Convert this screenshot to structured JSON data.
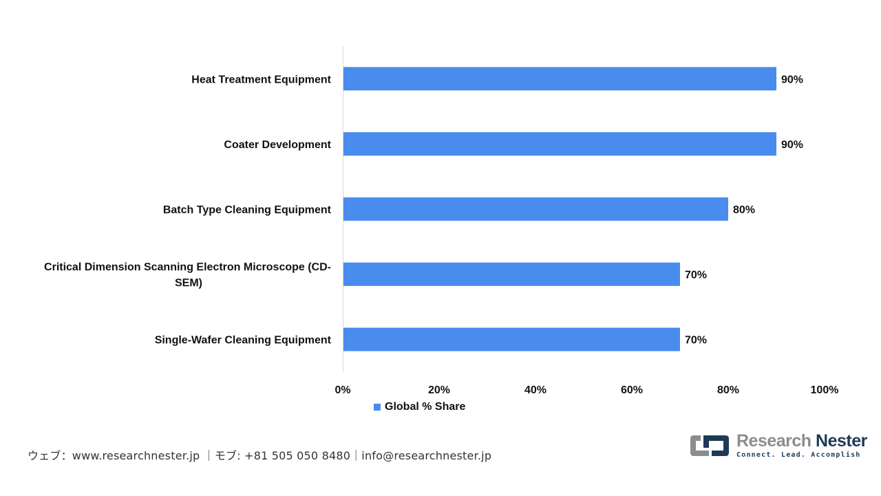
{
  "chart_data": {
    "type": "bar",
    "orientation": "horizontal",
    "categories": [
      "Heat Treatment Equipment",
      "Coater Development",
      "Batch Type Cleaning Equipment",
      "Critical Dimension Scanning Electron Microscope (CD-SEM)",
      "Single-Wafer Cleaning Equipment"
    ],
    "category_lines": [
      [
        "Heat Treatment Equipment"
      ],
      [
        "Coater Development"
      ],
      [
        "Batch Type Cleaning Equipment"
      ],
      [
        "Critical Dimension Scanning Electron Microscope (CD-",
        "SEM)"
      ],
      [
        "Single-Wafer Cleaning Equipment"
      ]
    ],
    "series": [
      {
        "name": "Global % Share",
        "values": [
          90,
          90,
          80,
          70,
          70
        ],
        "color": "#4a8ced"
      }
    ],
    "value_labels": [
      "90%",
      "90%",
      "80%",
      "70%",
      "70%"
    ],
    "xlim": [
      0,
      100
    ],
    "x_ticks": [
      0,
      20,
      40,
      60,
      80,
      100
    ],
    "x_tick_labels": [
      "0%",
      "20%",
      "40%",
      "60%",
      "80%",
      "100%"
    ],
    "title": "",
    "xlabel": "",
    "ylabel": "",
    "grid": false,
    "legend_position": "bottom"
  },
  "legend": {
    "label": "Global % Share",
    "color": "#4a8ced"
  },
  "footer": {
    "text": "ウェブ：www.researchnester.jp ｜モブ: +81 505 050 8480｜info@researchnester.jp"
  },
  "logo": {
    "name_part1": "Research",
    "name_part2": "Nester",
    "tagline": "Connect. Lead. Accomplish",
    "icon": "research-nester-logo-mark"
  }
}
